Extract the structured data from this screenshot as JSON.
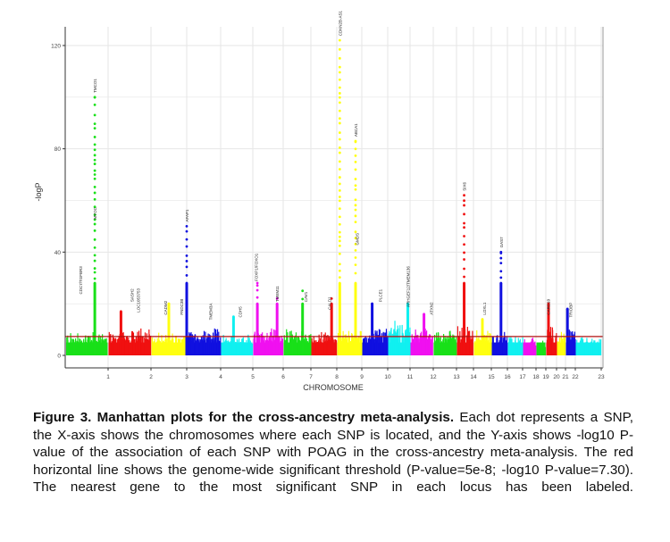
{
  "chart_data": {
    "type": "scatter",
    "subtype": "manhattan",
    "xlabel": "CHROMOSOME",
    "ylabel": "-logP",
    "ylim": [
      -5,
      126
    ],
    "xlim": [
      0,
      23
    ],
    "yticks": [
      0,
      40,
      80,
      120
    ],
    "xticks": [
      "1",
      "2",
      "3",
      "4",
      "5",
      "6",
      "7",
      "8",
      "9",
      "10",
      "11",
      "12",
      "13",
      "14",
      "15",
      "16",
      "17",
      "18",
      "19",
      "20",
      "21",
      "22",
      "23"
    ],
    "grid": true,
    "threshold": 7.3,
    "threshold_color": "#b01010",
    "segment_colors": [
      "#19e019",
      "#f01010",
      "#ffff10",
      "#1010e0",
      "#10f0f0",
      "#f010f0"
    ],
    "segment_baseline_max": [
      8,
      9,
      8,
      9,
      7,
      9,
      9,
      8,
      9,
      10,
      12,
      10,
      9,
      10,
      9,
      8,
      7,
      6,
      5,
      10,
      8,
      10,
      6
    ],
    "peaks": [
      {
        "segment": 0,
        "pos": 0.69,
        "max": 100,
        "min": 8
      },
      {
        "segment": 1,
        "pos": 0.3,
        "max": 17
      },
      {
        "segment": 2,
        "pos": 0.5,
        "max": 20
      },
      {
        "segment": 3,
        "pos": 0.0,
        "max": 50,
        "min": 8
      },
      {
        "segment": 4,
        "pos": 0.4,
        "max": 15
      },
      {
        "segment": 5,
        "pos": 0.15,
        "max": 28
      },
      {
        "segment": 5,
        "pos": 0.8,
        "max": 22
      },
      {
        "segment": 6,
        "pos": 0.7,
        "max": 25
      },
      {
        "segment": 7,
        "pos": 0.8,
        "max": 22
      },
      {
        "segment": 8,
        "pos": 0.12,
        "max": 122,
        "min": 8
      },
      {
        "segment": 8,
        "pos": 0.75,
        "max": 83,
        "min": 8
      },
      {
        "segment": 9,
        "pos": 0.4,
        "max": 20
      },
      {
        "segment": 10,
        "pos": 0.9,
        "max": 20
      },
      {
        "segment": 11,
        "pos": 0.6,
        "max": 16
      },
      {
        "segment": 13,
        "pos": 0.45,
        "max": 62,
        "min": 8
      },
      {
        "segment": 14,
        "pos": 0.5,
        "max": 14
      },
      {
        "segment": 15,
        "pos": 0.6,
        "max": 40,
        "min": 8
      },
      {
        "segment": 19,
        "pos": 0.25,
        "max": 20
      },
      {
        "segment": 21,
        "pos": 0.2,
        "max": 18
      }
    ],
    "gene_labels": [
      {
        "text": "TMCO1",
        "segment": 0,
        "pos": 0.69,
        "value": 101
      },
      {
        "text": "MYOC",
        "segment": 0,
        "pos": 0.69,
        "value": 52
      },
      {
        "text": "CDC7/TGFBR3",
        "segment": 0,
        "pos": 0.35,
        "value": 23
      },
      {
        "text": "SASH2",
        "segment": 1,
        "pos": 0.55,
        "value": 20
      },
      {
        "text": "LOC1053753",
        "segment": 1,
        "pos": 0.7,
        "value": 16
      },
      {
        "text": "CADM2",
        "segment": 2,
        "pos": 0.4,
        "value": 15
      },
      {
        "text": "FNDC3B",
        "segment": 2,
        "pos": 0.85,
        "value": 15
      },
      {
        "text": "AFAP1",
        "segment": 3,
        "pos": 0.0,
        "value": 51
      },
      {
        "text": "TMEM3A",
        "segment": 3,
        "pos": 0.7,
        "value": 13
      },
      {
        "text": "CDH5",
        "segment": 4,
        "pos": 0.6,
        "value": 14
      },
      {
        "text": "FOXP1/FOXO1",
        "segment": 5,
        "pos": 0.1,
        "value": 28
      },
      {
        "text": "TMEM11",
        "segment": 5,
        "pos": 0.8,
        "value": 20
      },
      {
        "text": "CAV1",
        "segment": 6,
        "pos": 0.8,
        "value": 20
      },
      {
        "text": "CALD1",
        "segment": 7,
        "pos": 0.7,
        "value": 17
      },
      {
        "text": "CDKN2B-AS1",
        "segment": 8,
        "pos": 0.12,
        "value": 123
      },
      {
        "text": "ABCA1",
        "segment": 8,
        "pos": 0.75,
        "value": 84
      },
      {
        "text": "GMDS",
        "segment": 8,
        "pos": 0.8,
        "value": 42
      },
      {
        "text": "PLCE1",
        "segment": 9,
        "pos": 0.7,
        "value": 20
      },
      {
        "text": "ARHGEF12/TMEM136",
        "segment": 10,
        "pos": 0.9,
        "value": 18
      },
      {
        "text": "ATXN2",
        "segment": 11,
        "pos": 0.9,
        "value": 15
      },
      {
        "text": "SIX6",
        "segment": 13,
        "pos": 0.45,
        "value": 63
      },
      {
        "text": "LOXL1",
        "segment": 14,
        "pos": 0.6,
        "value": 15
      },
      {
        "text": "GAS7",
        "segment": 15,
        "pos": 0.6,
        "value": 41
      },
      {
        "text": "CARD10",
        "segment": 19,
        "pos": 0.2,
        "value": 15
      },
      {
        "text": "TRIOBP",
        "segment": 21,
        "pos": 0.5,
        "value": 14
      }
    ]
  },
  "caption": {
    "title": "Figure 3. Manhattan plots for the cross-ancestry meta-analysis.",
    "body": " Each dot represents a SNP, the X-axis shows the chromosomes where each SNP is located, and the Y-axis shows -log10 P-value of the association of each SNP with POAG in the cross-ancestry meta-analysis. The red horizontal line shows the genome-wide significant threshold (P-value=5e-8; -log10 P-value=7.30). The nearest gene to the most significant SNP in each locus has been labeled."
  }
}
